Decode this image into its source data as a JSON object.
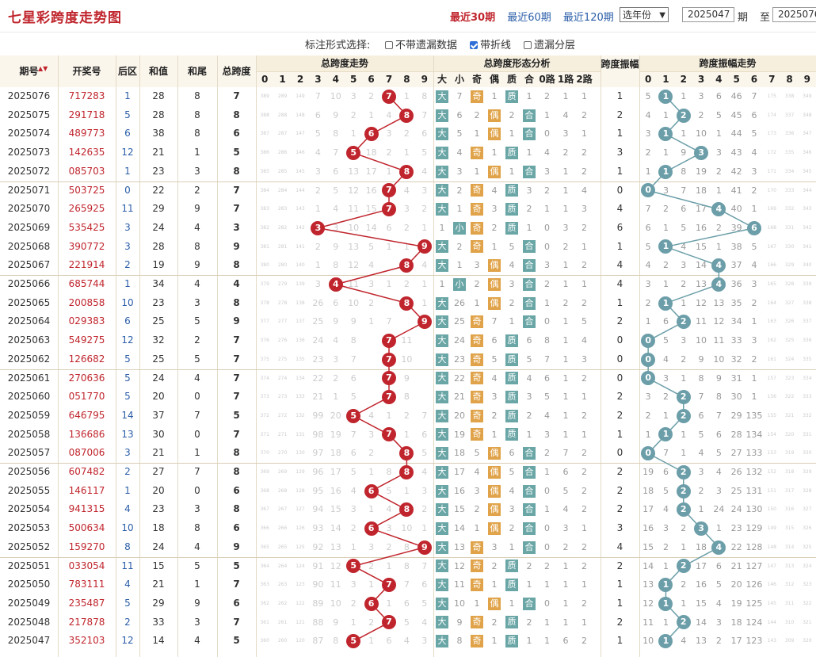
{
  "header": {
    "title": "七星彩跨度走势图",
    "links": [
      "最近30期",
      "最近60期",
      "最近120期"
    ],
    "active_link": 0,
    "year_select": "选年份",
    "from_period": "2025047",
    "from_label": "期",
    "to_label": "至",
    "to_period": "2025076"
  },
  "options": {
    "label": "标注形式选择:",
    "items": [
      {
        "label": "不带遗漏数据",
        "checked": false
      },
      {
        "label": "带折线",
        "checked": true
      },
      {
        "label": "遗漏分层",
        "checked": false
      }
    ]
  },
  "columns": {
    "period": "期号",
    "prize": "开奖号",
    "back": "后区",
    "sum": "和值",
    "tail": "和尾",
    "span": "总跨度",
    "span_trend": "总跨度走势",
    "span_shape": "总跨度形态分析",
    "shape_heads": [
      "大",
      "小",
      "奇",
      "偶",
      "质",
      "合",
      "0路",
      "1路",
      "2路"
    ],
    "amp": "跨度振幅",
    "amp_trend": "跨度振幅走势",
    "digits": [
      "0",
      "1",
      "2",
      "3",
      "4",
      "5",
      "6",
      "7",
      "8",
      "9"
    ],
    "amp_digits": [
      "0",
      "1",
      "2",
      "3",
      "4",
      "5",
      "6",
      "7",
      "8",
      "9"
    ]
  },
  "colors": {
    "red": "#c0252d",
    "teal": "#6b9ea8",
    "green_tag": "#6aa6a6",
    "orange_tag": "#e0a34a"
  },
  "rows": [
    {
      "p": "2025076",
      "n": "717283",
      "b": "1",
      "s": "28",
      "t": "8",
      "k": 7,
      "a": 1,
      "miss": [
        "389",
        "289",
        "149",
        "7",
        "10",
        "3",
        "2",
        "",
        "1",
        "8"
      ],
      "shape": [
        "大",
        "7",
        "奇",
        "1",
        "质",
        "1",
        "2",
        "1",
        "1"
      ],
      "am": [
        "5",
        "",
        "1",
        "3",
        "6",
        "46",
        "7",
        "175",
        "338",
        "349"
      ]
    },
    {
      "p": "2025075",
      "n": "291718",
      "b": "5",
      "s": "28",
      "t": "8",
      "k": 8,
      "a": 2,
      "miss": [
        "388",
        "288",
        "148",
        "6",
        "9",
        "2",
        "1",
        "4",
        "",
        "7"
      ],
      "shape": [
        "大",
        "6",
        "2",
        "偶",
        "2",
        "合",
        "1",
        "4",
        "2"
      ],
      "am": [
        "4",
        "1",
        "",
        "2",
        "5",
        "45",
        "6",
        "174",
        "337",
        "348"
      ]
    },
    {
      "p": "2025074",
      "n": "489773",
      "b": "6",
      "s": "38",
      "t": "8",
      "k": 6,
      "a": 1,
      "miss": [
        "387",
        "287",
        "147",
        "5",
        "8",
        "1",
        "",
        "3",
        "2",
        "6"
      ],
      "shape": [
        "大",
        "5",
        "1",
        "偶",
        "1",
        "合",
        "0",
        "3",
        "1"
      ],
      "am": [
        "3",
        "",
        "1",
        "10",
        "1",
        "44",
        "5",
        "173",
        "336",
        "347"
      ]
    },
    {
      "p": "2025073",
      "n": "142635",
      "b": "12",
      "s": "21",
      "t": "1",
      "k": 5,
      "a": 3,
      "miss": [
        "386",
        "286",
        "146",
        "4",
        "7",
        "",
        "18",
        "2",
        "1",
        "5"
      ],
      "shape": [
        "大",
        "4",
        "奇",
        "1",
        "质",
        "1",
        "4",
        "2",
        "2"
      ],
      "am": [
        "2",
        "1",
        "9",
        "",
        "3",
        "43",
        "4",
        "172",
        "335",
        "346"
      ]
    },
    {
      "p": "2025072",
      "n": "085703",
      "b": "1",
      "s": "23",
      "t": "3",
      "k": 8,
      "a": 1,
      "miss": [
        "385",
        "285",
        "145",
        "3",
        "6",
        "13",
        "17",
        "1",
        "",
        "4"
      ],
      "shape": [
        "大",
        "3",
        "1",
        "偶",
        "1",
        "合",
        "3",
        "1",
        "2"
      ],
      "am": [
        "1",
        "",
        "8",
        "19",
        "2",
        "42",
        "3",
        "171",
        "334",
        "345"
      ]
    },
    {
      "p": "2025071",
      "n": "503725",
      "b": "0",
      "s": "22",
      "t": "2",
      "k": 7,
      "a": 0,
      "miss": [
        "384",
        "284",
        "144",
        "2",
        "5",
        "12",
        "16",
        "",
        "4",
        "3"
      ],
      "shape": [
        "大",
        "2",
        "奇",
        "4",
        "质",
        "3",
        "2",
        "1",
        "4"
      ],
      "am": [
        "",
        "3",
        "7",
        "18",
        "1",
        "41",
        "2",
        "170",
        "333",
        "344"
      ]
    },
    {
      "p": "2025070",
      "n": "265925",
      "b": "11",
      "s": "29",
      "t": "9",
      "k": 7,
      "a": 4,
      "miss": [
        "383",
        "283",
        "143",
        "1",
        "4",
        "11",
        "15",
        "",
        "3",
        "2"
      ],
      "shape": [
        "大",
        "1",
        "奇",
        "3",
        "质",
        "2",
        "1",
        "1",
        "3"
      ],
      "am": [
        "7",
        "2",
        "6",
        "17",
        "",
        "40",
        "1",
        "169",
        "332",
        "343"
      ]
    },
    {
      "p": "2025069",
      "n": "535425",
      "b": "3",
      "s": "24",
      "t": "4",
      "k": 3,
      "a": 6,
      "miss": [
        "382",
        "282",
        "142",
        "",
        "3",
        "10",
        "14",
        "6",
        "2",
        "1"
      ],
      "shape": [
        "1",
        "小",
        "奇",
        "2",
        "质",
        "1",
        "0",
        "3",
        "2"
      ],
      "am": [
        "6",
        "1",
        "5",
        "16",
        "2",
        "39",
        "",
        "168",
        "331",
        "342"
      ]
    },
    {
      "p": "2025068",
      "n": "390772",
      "b": "3",
      "s": "28",
      "t": "8",
      "k": 9,
      "a": 1,
      "miss": [
        "381",
        "281",
        "141",
        "2",
        "9",
        "13",
        "5",
        "1",
        "1",
        ""
      ],
      "shape": [
        "大",
        "2",
        "奇",
        "1",
        "5",
        "合",
        "0",
        "2",
        "1"
      ],
      "am": [
        "5",
        "",
        "4",
        "15",
        "1",
        "38",
        "5",
        "167",
        "330",
        "341"
      ]
    },
    {
      "p": "2025067",
      "n": "221914",
      "b": "2",
      "s": "19",
      "t": "9",
      "k": 8,
      "a": 4,
      "miss": [
        "380",
        "280",
        "140",
        "1",
        "8",
        "12",
        "4",
        "",
        "",
        "4"
      ],
      "shape": [
        "大",
        "1",
        "3",
        "偶",
        "4",
        "合",
        "3",
        "1",
        "2"
      ],
      "am": [
        "4",
        "2",
        "3",
        "14",
        "",
        "37",
        "4",
        "166",
        "329",
        "340"
      ]
    },
    {
      "p": "2025066",
      "n": "685744",
      "b": "1",
      "s": "34",
      "t": "4",
      "k": 4,
      "a": 4,
      "miss": [
        "379",
        "279",
        "139",
        "3",
        "",
        "11",
        "3",
        "1",
        "2",
        "1"
      ],
      "shape": [
        "1",
        "小",
        "2",
        "偶",
        "3",
        "合",
        "2",
        "1",
        "1"
      ],
      "am": [
        "3",
        "1",
        "2",
        "13",
        "",
        "36",
        "3",
        "165",
        "328",
        "339"
      ]
    },
    {
      "p": "2025065",
      "n": "200858",
      "b": "10",
      "s": "23",
      "t": "3",
      "k": 8,
      "a": 1,
      "miss": [
        "378",
        "278",
        "138",
        "26",
        "6",
        "10",
        "2",
        "",
        "",
        "1"
      ],
      "shape": [
        "大",
        "26",
        "1",
        "偶",
        "2",
        "合",
        "1",
        "2",
        "2"
      ],
      "am": [
        "2",
        "",
        "1",
        "12",
        "13",
        "35",
        "2",
        "164",
        "327",
        "338"
      ]
    },
    {
      "p": "2025064",
      "n": "029383",
      "b": "6",
      "s": "25",
      "t": "5",
      "k": 9,
      "a": 2,
      "miss": [
        "377",
        "277",
        "137",
        "25",
        "9",
        "9",
        "1",
        "7",
        "",
        ""
      ],
      "shape": [
        "大",
        "25",
        "奇",
        "7",
        "1",
        "合",
        "0",
        "1",
        "5"
      ],
      "am": [
        "1",
        "6",
        "",
        "11",
        "12",
        "34",
        "1",
        "163",
        "326",
        "337"
      ]
    },
    {
      "p": "2025063",
      "n": "549275",
      "b": "12",
      "s": "32",
      "t": "2",
      "k": 7,
      "a": 0,
      "miss": [
        "376",
        "276",
        "136",
        "24",
        "4",
        "8",
        "",
        "6",
        "11",
        ""
      ],
      "shape": [
        "大",
        "24",
        "奇",
        "6",
        "质",
        "6",
        "8",
        "1",
        "4"
      ],
      "am": [
        "",
        "5",
        "3",
        "10",
        "11",
        "33",
        "3",
        "162",
        "325",
        "336"
      ]
    },
    {
      "p": "2025062",
      "n": "126682",
      "b": "5",
      "s": "25",
      "t": "5",
      "k": 7,
      "a": 0,
      "miss": [
        "375",
        "275",
        "135",
        "23",
        "3",
        "7",
        "",
        "5",
        "10",
        ""
      ],
      "shape": [
        "大",
        "23",
        "奇",
        "5",
        "质",
        "5",
        "7",
        "1",
        "3"
      ],
      "am": [
        "",
        "4",
        "2",
        "9",
        "10",
        "32",
        "2",
        "161",
        "324",
        "335"
      ]
    },
    {
      "p": "2025061",
      "n": "270636",
      "b": "5",
      "s": "24",
      "t": "4",
      "k": 7,
      "a": 0,
      "miss": [
        "374",
        "274",
        "134",
        "22",
        "2",
        "6",
        "",
        "4",
        "9",
        ""
      ],
      "shape": [
        "大",
        "22",
        "奇",
        "4",
        "质",
        "4",
        "6",
        "1",
        "2"
      ],
      "am": [
        "",
        "3",
        "1",
        "8",
        "9",
        "31",
        "1",
        "157",
        "323",
        "334"
      ]
    },
    {
      "p": "2025060",
      "n": "051770",
      "b": "5",
      "s": "20",
      "t": "0",
      "k": 7,
      "a": 2,
      "miss": [
        "373",
        "273",
        "133",
        "21",
        "1",
        "5",
        "",
        "3",
        "8",
        ""
      ],
      "shape": [
        "大",
        "21",
        "奇",
        "3",
        "质",
        "3",
        "5",
        "1",
        "1"
      ],
      "am": [
        "3",
        "2",
        "",
        "7",
        "8",
        "30",
        "1",
        "156",
        "322",
        "333"
      ]
    },
    {
      "p": "2025059",
      "n": "646795",
      "b": "14",
      "s": "37",
      "t": "7",
      "k": 5,
      "a": 2,
      "miss": [
        "372",
        "272",
        "132",
        "99",
        "20",
        "",
        "4",
        "1",
        "2",
        "7"
      ],
      "shape": [
        "大",
        "20",
        "奇",
        "2",
        "质",
        "2",
        "4",
        "1",
        "2"
      ],
      "am": [
        "2",
        "1",
        "",
        "6",
        "7",
        "29",
        "135",
        "155",
        "321",
        "332"
      ]
    },
    {
      "p": "2025058",
      "n": "136686",
      "b": "13",
      "s": "30",
      "t": "0",
      "k": 7,
      "a": 1,
      "miss": [
        "371",
        "271",
        "131",
        "98",
        "19",
        "7",
        "3",
        "",
        "1",
        "6"
      ],
      "shape": [
        "大",
        "19",
        "奇",
        "1",
        "质",
        "1",
        "3",
        "1",
        "1"
      ],
      "am": [
        "1",
        "",
        "1",
        "5",
        "6",
        "28",
        "134",
        "154",
        "320",
        "331"
      ]
    },
    {
      "p": "2025057",
      "n": "087006",
      "b": "3",
      "s": "21",
      "t": "1",
      "k": 8,
      "a": 0,
      "miss": [
        "370",
        "270",
        "130",
        "97",
        "18",
        "6",
        "2",
        "",
        "",
        "5"
      ],
      "shape": [
        "大",
        "18",
        "5",
        "偶",
        "6",
        "合",
        "2",
        "7",
        "2"
      ],
      "am": [
        "",
        "7",
        "1",
        "4",
        "5",
        "27",
        "133",
        "153",
        "319",
        "330"
      ]
    },
    {
      "p": "2025056",
      "n": "607482",
      "b": "2",
      "s": "27",
      "t": "7",
      "k": 8,
      "a": 2,
      "miss": [
        "369",
        "269",
        "129",
        "96",
        "17",
        "5",
        "1",
        "8",
        "",
        "4"
      ],
      "shape": [
        "大",
        "17",
        "4",
        "偶",
        "5",
        "合",
        "1",
        "6",
        "2"
      ],
      "am": [
        "19",
        "6",
        "",
        "3",
        "4",
        "26",
        "132",
        "152",
        "318",
        "329"
      ]
    },
    {
      "p": "2025055",
      "n": "146117",
      "b": "1",
      "s": "20",
      "t": "0",
      "k": 6,
      "a": 2,
      "miss": [
        "368",
        "268",
        "128",
        "95",
        "16",
        "4",
        "",
        "5",
        "1",
        "3"
      ],
      "shape": [
        "大",
        "16",
        "3",
        "偶",
        "4",
        "合",
        "0",
        "5",
        "2"
      ],
      "am": [
        "18",
        "5",
        "",
        "2",
        "3",
        "25",
        "131",
        "151",
        "317",
        "328"
      ]
    },
    {
      "p": "2025054",
      "n": "941315",
      "b": "4",
      "s": "23",
      "t": "3",
      "k": 8,
      "a": 2,
      "miss": [
        "367",
        "267",
        "127",
        "94",
        "15",
        "3",
        "1",
        "4",
        "",
        "2"
      ],
      "shape": [
        "大",
        "15",
        "2",
        "偶",
        "3",
        "合",
        "1",
        "4",
        "2"
      ],
      "am": [
        "17",
        "4",
        "",
        "1",
        "24",
        "24",
        "130",
        "150",
        "316",
        "327"
      ]
    },
    {
      "p": "2025053",
      "n": "500634",
      "b": "10",
      "s": "18",
      "t": "8",
      "k": 6,
      "a": 3,
      "miss": [
        "366",
        "266",
        "126",
        "93",
        "14",
        "2",
        "",
        "3",
        "10",
        "1"
      ],
      "shape": [
        "大",
        "14",
        "1",
        "偶",
        "2",
        "合",
        "0",
        "3",
        "1"
      ],
      "am": [
        "16",
        "3",
        "2",
        "",
        "1",
        "23",
        "129",
        "149",
        "315",
        "326"
      ]
    },
    {
      "p": "2025052",
      "n": "159270",
      "b": "8",
      "s": "24",
      "t": "4",
      "k": 9,
      "a": 4,
      "miss": [
        "365",
        "265",
        "125",
        "92",
        "13",
        "1",
        "3",
        "2",
        "8",
        ""
      ],
      "shape": [
        "大",
        "13",
        "奇",
        "3",
        "1",
        "合",
        "0",
        "2",
        "2"
      ],
      "am": [
        "15",
        "2",
        "1",
        "18",
        "",
        "22",
        "128",
        "148",
        "314",
        "325"
      ]
    },
    {
      "p": "2025051",
      "n": "033054",
      "b": "11",
      "s": "15",
      "t": "5",
      "k": 5,
      "a": 2,
      "miss": [
        "364",
        "264",
        "124",
        "91",
        "12",
        "",
        "2",
        "1",
        "8",
        "7"
      ],
      "shape": [
        "大",
        "12",
        "奇",
        "2",
        "质",
        "2",
        "2",
        "1",
        "2"
      ],
      "am": [
        "14",
        "1",
        "",
        "17",
        "6",
        "21",
        "127",
        "147",
        "313",
        "324"
      ]
    },
    {
      "p": "2025050",
      "n": "783111",
      "b": "4",
      "s": "21",
      "t": "1",
      "k": 7,
      "a": 1,
      "miss": [
        "363",
        "263",
        "123",
        "90",
        "11",
        "3",
        "1",
        "",
        "7",
        "6"
      ],
      "shape": [
        "大",
        "11",
        "奇",
        "1",
        "质",
        "1",
        "1",
        "1",
        "1"
      ],
      "am": [
        "13",
        "",
        "2",
        "16",
        "5",
        "20",
        "126",
        "146",
        "312",
        "323"
      ]
    },
    {
      "p": "2025049",
      "n": "235487",
      "b": "5",
      "s": "29",
      "t": "9",
      "k": 6,
      "a": 1,
      "miss": [
        "362",
        "262",
        "122",
        "89",
        "10",
        "2",
        "",
        "1",
        "6",
        "5"
      ],
      "shape": [
        "大",
        "10",
        "1",
        "偶",
        "1",
        "合",
        "0",
        "1",
        "2"
      ],
      "am": [
        "12",
        "",
        "1",
        "15",
        "4",
        "19",
        "125",
        "145",
        "311",
        "322"
      ]
    },
    {
      "p": "2025048",
      "n": "217878",
      "b": "2",
      "s": "33",
      "t": "3",
      "k": 7,
      "a": 2,
      "miss": [
        "361",
        "261",
        "121",
        "88",
        "9",
        "1",
        "2",
        "",
        "5",
        "4"
      ],
      "shape": [
        "大",
        "9",
        "奇",
        "2",
        "质",
        "2",
        "1",
        "1",
        "1"
      ],
      "am": [
        "11",
        "1",
        "",
        "14",
        "3",
        "18",
        "124",
        "144",
        "310",
        "321"
      ]
    },
    {
      "p": "2025047",
      "n": "352103",
      "b": "12",
      "s": "14",
      "t": "4",
      "k": 5,
      "a": 1,
      "miss": [
        "360",
        "260",
        "120",
        "87",
        "8",
        "",
        "1",
        "6",
        "4",
        "3"
      ],
      "shape": [
        "大",
        "8",
        "奇",
        "1",
        "质",
        "1",
        "1",
        "6",
        "2"
      ],
      "am": [
        "10",
        "",
        "4",
        "13",
        "2",
        "17",
        "123",
        "143",
        "309",
        "320"
      ]
    }
  ]
}
